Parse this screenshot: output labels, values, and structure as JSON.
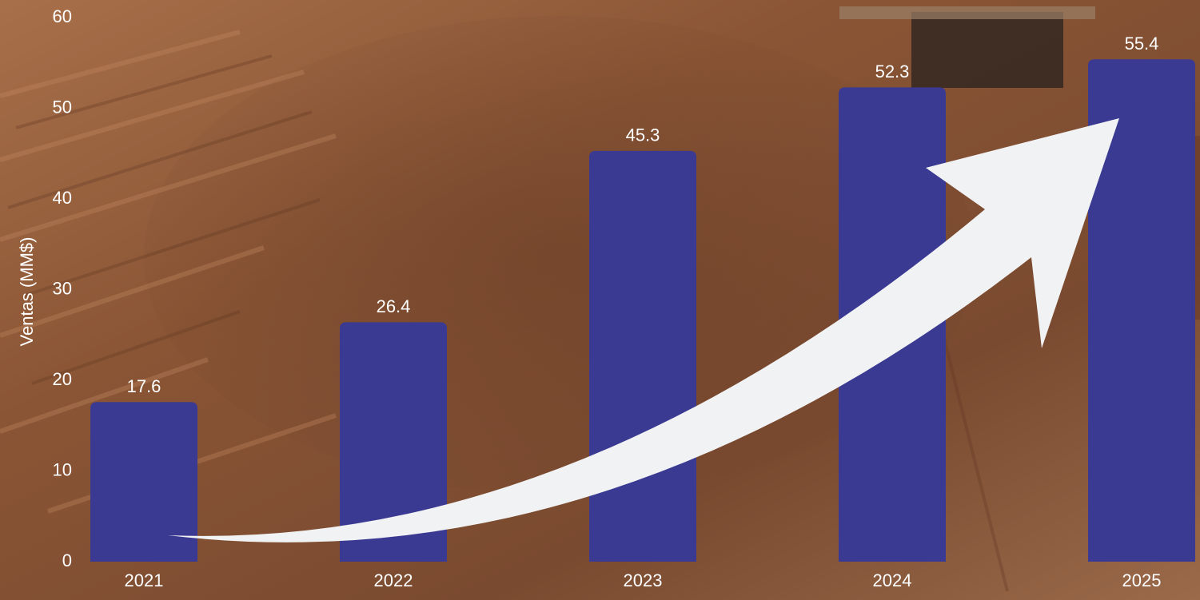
{
  "chart_data": {
    "type": "bar",
    "y_label": "Ventas (MM$)",
    "categories": [
      "2021",
      "2022",
      "2023",
      "2024",
      "2025"
    ],
    "values": [
      17.6,
      26.4,
      45.3,
      52.3,
      55.4
    ],
    "color": "#3b3a92",
    "ylim": [
      0,
      60
    ],
    "yticks": [
      0,
      10,
      20,
      30,
      40,
      50,
      60
    ],
    "grid": false
  }
}
